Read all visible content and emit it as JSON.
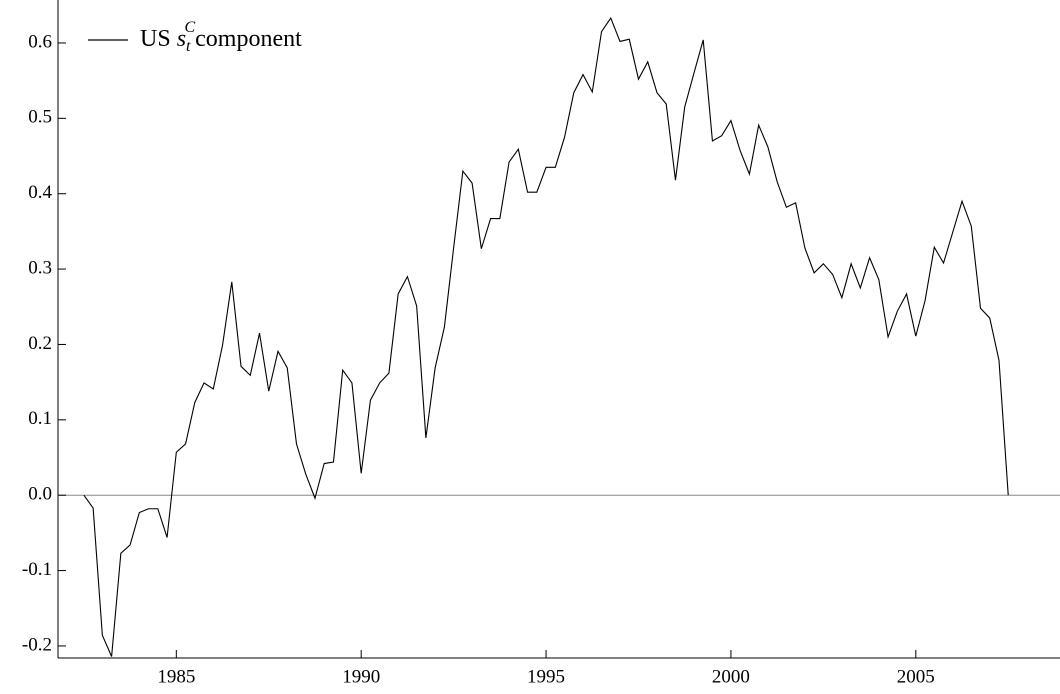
{
  "chart_data": {
    "type": "line",
    "xlim": [
      1981.8,
      2008.9
    ],
    "ylim": [
      -0.216,
      0.657
    ],
    "xticks": [
      1985,
      1990,
      1995,
      2000,
      2005
    ],
    "yticks": [
      -0.2,
      -0.1,
      {
        "value": 0,
        "label": "0.0"
      },
      0.1,
      0.2,
      0.3,
      0.4,
      0.5,
      0.6
    ],
    "zero_line": true,
    "legend": "upper left",
    "x": [
      1982.5,
      1982.75,
      1983,
      1983.25,
      1983.5,
      1983.75,
      1984,
      1984.25,
      1984.5,
      1984.75,
      1985,
      1985.25,
      1985.5,
      1985.75,
      1986,
      1986.25,
      1986.5,
      1986.75,
      1987,
      1987.25,
      1987.5,
      1987.75,
      1988,
      1988.25,
      1988.5,
      1988.75,
      1989,
      1989.25,
      1989.5,
      1989.75,
      1990,
      1990.25,
      1990.5,
      1990.75,
      1991,
      1991.25,
      1991.5,
      1991.75,
      1992,
      1992.25,
      1992.5,
      1992.75,
      1993,
      1993.25,
      1993.5,
      1993.75,
      1994,
      1994.25,
      1994.5,
      1994.75,
      1995,
      1995.25,
      1995.5,
      1995.75,
      1996,
      1996.25,
      1996.5,
      1996.75,
      1997,
      1997.25,
      1997.5,
      1997.75,
      1998,
      1998.25,
      1998.5,
      1998.75,
      1999,
      1999.25,
      1999.5,
      1999.75,
      2000,
      2000.25,
      2000.5,
      2000.75,
      2001,
      2001.25,
      2001.5,
      2001.75,
      2002,
      2002.25,
      2002.5,
      2002.75,
      2003,
      2003.25,
      2003.5,
      2003.75,
      2004,
      2004.25,
      2004.5,
      2004.75,
      2005,
      2005.25,
      2005.5,
      2005.75,
      2006,
      2006.25,
      2006.5,
      2006.75,
      2007,
      2007.25,
      2007.5
    ],
    "series": [
      {
        "name": "US",
        "name_symbol": "s",
        "name_sub": "t",
        "name_sup": "C",
        "name_suffix": "component",
        "color": "#000000",
        "values": [
          0.0,
          -0.017,
          -0.186,
          -0.214,
          -0.077,
          -0.066,
          -0.023,
          -0.018,
          -0.018,
          -0.056,
          0.057,
          0.068,
          0.123,
          0.149,
          0.141,
          0.199,
          0.283,
          0.171,
          0.159,
          0.215,
          0.138,
          0.191,
          0.169,
          0.068,
          0.028,
          -0.004,
          0.042,
          0.044,
          0.166,
          0.149,
          0.029,
          0.126,
          0.149,
          0.162,
          0.267,
          0.29,
          0.251,
          0.076,
          0.169,
          0.223,
          0.328,
          0.43,
          0.414,
          0.327,
          0.367,
          0.367,
          0.442,
          0.459,
          0.402,
          0.402,
          0.435,
          0.435,
          0.475,
          0.534,
          0.558,
          0.535,
          0.615,
          0.633,
          0.602,
          0.605,
          0.552,
          0.575,
          0.534,
          0.519,
          0.418,
          0.515,
          0.56,
          0.604,
          0.47,
          0.477,
          0.497,
          0.457,
          0.426,
          0.491,
          0.462,
          0.416,
          0.382,
          0.388,
          0.328,
          0.295,
          0.307,
          0.293,
          0.262,
          0.307,
          0.275,
          0.315,
          0.286,
          0.21,
          0.244,
          0.267,
          0.211,
          0.258,
          0.329,
          0.308,
          0.349,
          0.39,
          0.357,
          0.248,
          0.235,
          0.179,
          0.0
        ]
      }
    ]
  }
}
